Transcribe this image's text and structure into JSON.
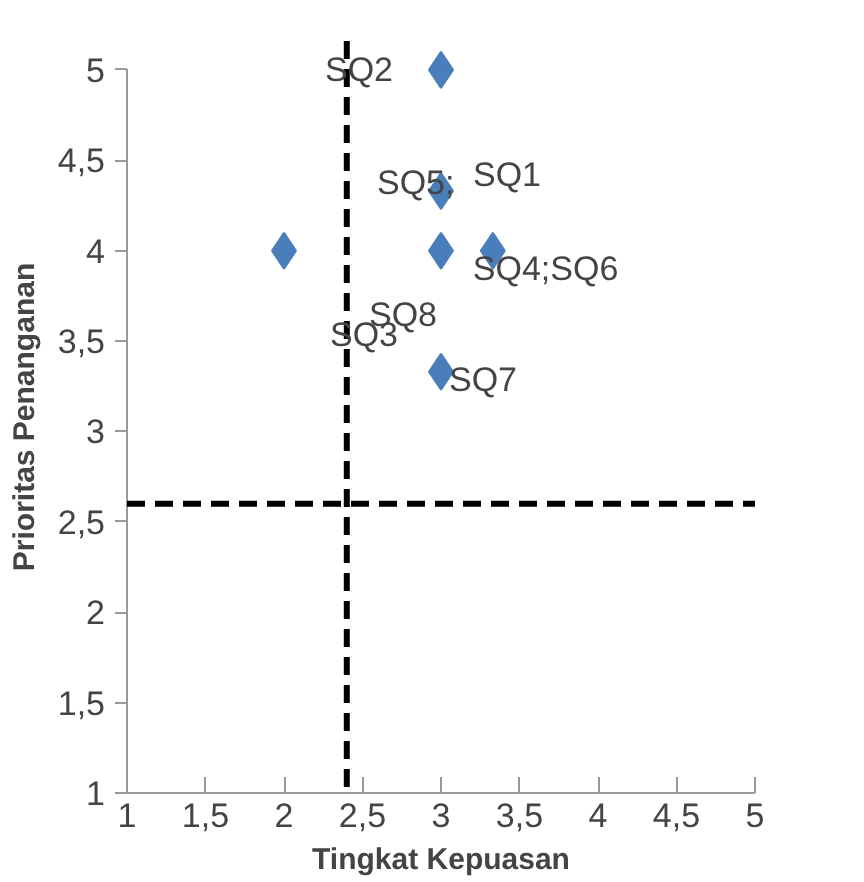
{
  "chart_data": {
    "type": "scatter",
    "xlabel": "Tingkat Kepuasan",
    "ylabel": "Prioritas Penanganan",
    "x": [
      3,
      3,
      2,
      3,
      3.33,
      3
    ],
    "values": [
      5,
      4.33,
      4,
      4,
      4,
      3.33
    ],
    "color": "#4a7ebb",
    "marker": "diamond",
    "xlim": [
      1,
      5
    ],
    "xticks": [
      1,
      {
        "value": 1.5,
        "label": "1,5"
      },
      2,
      {
        "value": 2.5,
        "label": "2,5"
      },
      3,
      {
        "value": 3.5,
        "label": "3,5"
      },
      4,
      {
        "value": 4.5,
        "label": "4,5"
      },
      5
    ],
    "ylim": [
      1,
      5
    ],
    "yticks": [
      1,
      {
        "value": 1.5,
        "label": "1,5"
      },
      2,
      {
        "value": 2.5,
        "label": "2,5"
      },
      3,
      {
        "value": 3.5,
        "label": "3,5"
      },
      4,
      {
        "value": 4.5,
        "label": "4,5"
      },
      5
    ],
    "grid": false,
    "ref_lines": [
      {
        "axis": "x",
        "value": 2.4,
        "color": "#000000",
        "line_style": "dashed"
      },
      {
        "axis": "y",
        "value": 2.6,
        "color": "#000000",
        "line_style": "dashed"
      }
    ],
    "annotations": [
      {
        "text": "SQ2",
        "x": 3,
        "y": 5
      },
      {
        "text": "SQ5;",
        "x": 3,
        "y": 4.33
      },
      {
        "text": "SQ1",
        "x": 3,
        "y": 4.33
      },
      {
        "text": "SQ4;SQ6",
        "x": 3.33,
        "y": 4
      },
      {
        "text": "SQ8",
        "x": 3,
        "y": 4
      },
      {
        "text": "SQ3",
        "x": 2,
        "y": 4
      },
      {
        "text": "SQ7",
        "x": 3,
        "y": 3.33
      }
    ]
  }
}
